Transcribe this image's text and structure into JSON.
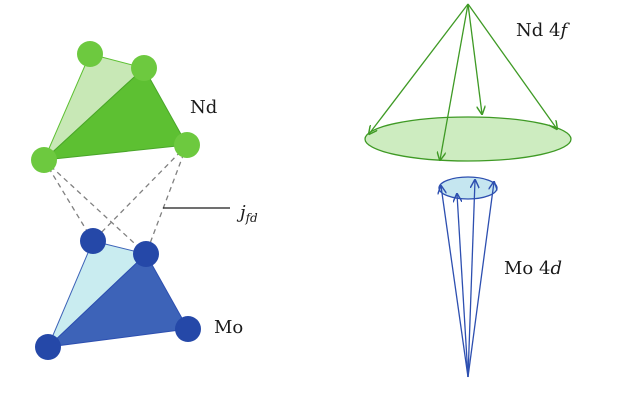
{
  "labels": {
    "nd": "Nd",
    "mo": "Mo",
    "coupling": "j",
    "coupling_sub": "fd",
    "nd_shell_prefix": "Nd 4",
    "nd_shell_orbital": "f",
    "mo_shell_prefix": "Mo 4",
    "mo_shell_orbital": "d"
  },
  "colors": {
    "nd_dark": "#5dc032",
    "nd_light": "#c8e8b6",
    "nd_node": "#6dc93f",
    "mo_dark": "#3d63b8",
    "mo_light": "#c9ecf0",
    "mo_node": "#2548a8",
    "nd_cone": "#3f9a25",
    "mo_cone": "#2d4fb0",
    "nd_disk_fill": "#cdecc0",
    "mo_disk_fill": "#c5e6f0",
    "dashed": "#808080"
  }
}
